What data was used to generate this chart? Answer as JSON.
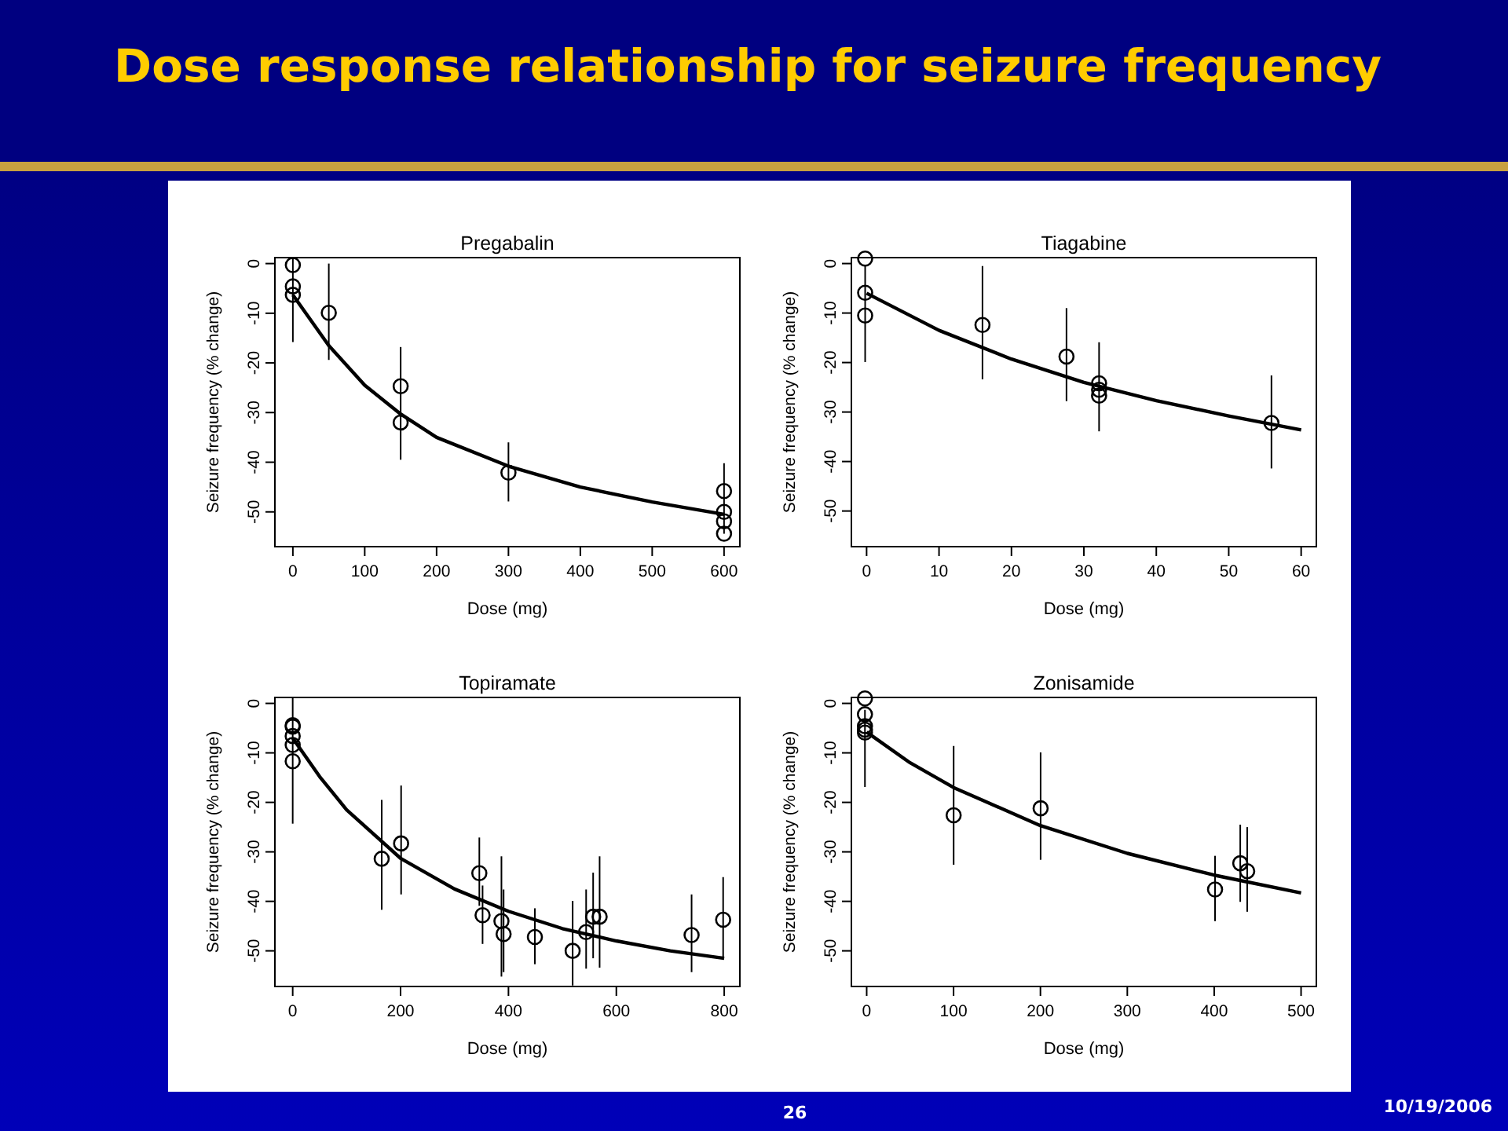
{
  "chart_data": [
    {
      "type": "other",
      "title": "Dose response relationship for seizure frequency",
      "annotations": [
        "26",
        "10/19/2006"
      ]
    },
    {
      "type": "scatter",
      "title": "Pregabalin",
      "xlabel": "Dose (mg)",
      "ylabel": "Seizure frequency (% change)",
      "xlim": [
        -25,
        622
      ],
      "ylim": [
        -57,
        1.2
      ],
      "xticks": [
        0,
        100,
        200,
        300,
        400,
        500,
        600
      ],
      "yticks": [
        0,
        -10,
        -20,
        -30,
        -40,
        -50
      ],
      "series": [
        {
          "type": "scatter",
          "marker": "circle",
          "color": "#000000",
          "x": [
            0,
            0,
            0,
            50,
            150,
            150,
            300,
            600,
            600,
            600,
            600
          ],
          "values": [
            -0.3,
            -4.6,
            -6.3,
            -9.9,
            -24.7,
            -32,
            -42.1,
            -45.8,
            -50,
            -51.9,
            -54.4
          ],
          "errors": [
            null,
            null,
            [
              -15.8,
              1.2
            ],
            [
              -19.4,
              0
            ],
            [
              -39.5,
              -16.8
            ],
            null,
            [
              -47.9,
              -36
            ],
            [
              -54.4,
              -40.2
            ],
            null,
            null,
            null
          ]
        },
        {
          "type": "line",
          "marker": "none",
          "color": "#000000",
          "x": [
            0,
            50,
            100,
            150,
            200,
            300,
            400,
            500,
            600
          ],
          "values": [
            -6.3,
            -16.5,
            -24.5,
            -30.3,
            -35,
            -40.8,
            -45,
            -48,
            -50.5
          ]
        }
      ]
    },
    {
      "type": "scatter",
      "title": "Tiagabine",
      "xlabel": "Dose (mg)",
      "ylabel": "Seizure frequency (% change)",
      "xlim": [
        -2.1,
        62.1
      ],
      "ylim": [
        -57.2,
        1.2
      ],
      "xticks": [
        0,
        10,
        20,
        30,
        40,
        50,
        60
      ],
      "yticks": [
        0,
        -10,
        -20,
        -30,
        -40,
        -50
      ],
      "series": [
        {
          "type": "scatter",
          "marker": "circle",
          "color": "#000000",
          "x": [
            -0.2,
            -0.2,
            -0.2,
            16,
            27.6,
            32.1,
            32.1,
            32.1,
            55.9
          ],
          "values": [
            1,
            -5.9,
            -10.5,
            -12.4,
            -18.8,
            -24.2,
            -25.5,
            -26.7,
            -32.2
          ],
          "errors": [
            null,
            null,
            [
              -19.9,
              -0.3
            ],
            [
              -23.4,
              -0.5
            ],
            [
              -27.8,
              -9
            ],
            null,
            [
              -33.9,
              -15.9
            ],
            null,
            [
              -41.4,
              -22.6
            ]
          ]
        },
        {
          "type": "line",
          "marker": "none",
          "color": "#000000",
          "x": [
            0,
            10,
            20,
            30,
            40,
            50,
            60
          ],
          "values": [
            -6,
            -13.5,
            -19.3,
            -24,
            -27.7,
            -30.8,
            -33.6
          ]
        }
      ]
    },
    {
      "type": "scatter",
      "title": "Topiramate",
      "xlabel": "Dose (mg)",
      "ylabel": "Seizure frequency (% change)",
      "xlim": [
        -33,
        829
      ],
      "ylim": [
        -57.2,
        1.2
      ],
      "xticks": [
        0,
        200,
        400,
        600,
        800
      ],
      "yticks": [
        0,
        -10,
        -20,
        -30,
        -40,
        -50
      ],
      "series": [
        {
          "type": "scatter",
          "marker": "circle",
          "color": "#000000",
          "x": [
            0,
            0,
            0,
            0,
            0,
            165,
            201,
            346,
            352,
            387,
            391,
            449,
            519,
            544,
            557,
            569,
            739.5,
            798
          ],
          "values": [
            -4.4,
            -4.7,
            -6.6,
            -8.4,
            -11.7,
            -31.4,
            -28.3,
            -34.3,
            -42.8,
            -44,
            -46.6,
            -47.2,
            -50,
            -46.2,
            -43.1,
            -43.1,
            -46.8,
            -43.7
          ],
          "errors": [
            null,
            null,
            null,
            null,
            [
              -24.3,
              1.2
            ],
            [
              -41.7,
              -19.5
            ],
            [
              -38.6,
              -16.6
            ],
            [
              -40.9,
              -27.1
            ],
            [
              -48.6,
              -36.8
            ],
            [
              -55.2,
              -30.9
            ],
            [
              -54.3,
              -37.6
            ],
            [
              -52.7,
              -41.4
            ],
            [
              -57,
              -39.9
            ],
            [
              -53.6,
              -37.6
            ],
            [
              -51.5,
              -34.2
            ],
            [
              -53.4,
              -30.9
            ],
            [
              -54.3,
              -38.6
            ],
            [
              -51.3,
              -35.1
            ]
          ]
        },
        {
          "type": "line",
          "marker": "none",
          "color": "#000000",
          "x": [
            0,
            50,
            100,
            200,
            300,
            400,
            500,
            600,
            700,
            800
          ],
          "values": [
            -7,
            -14.8,
            -21.5,
            -31.3,
            -37.5,
            -42,
            -45.5,
            -48,
            -50,
            -51.5
          ]
        }
      ]
    },
    {
      "type": "scatter",
      "title": "Zonisamide",
      "xlabel": "Dose (mg)",
      "ylabel": "Seizure frequency (% change)",
      "xlim": [
        -17.6,
        517.6
      ],
      "ylim": [
        -57.2,
        1.2
      ],
      "xticks": [
        0,
        100,
        200,
        300,
        400,
        500
      ],
      "yticks": [
        0,
        -10,
        -20,
        -30,
        -40,
        -50
      ],
      "series": [
        {
          "type": "scatter",
          "marker": "circle",
          "color": "#000000",
          "x": [
            -2,
            -2,
            -2,
            -2,
            -2,
            100.1,
            200.2,
            401,
            430,
            438
          ],
          "values": [
            1,
            -2.2,
            -4.6,
            -5.3,
            -5.9,
            -22.6,
            -21.2,
            -37.6,
            -32.3,
            -33.9
          ],
          "errors": [
            null,
            null,
            null,
            null,
            [
              -16.9,
              -1.3
            ],
            [
              -32.6,
              -8.6
            ],
            [
              -31.6,
              -9.9
            ],
            [
              -44,
              -30.8
            ],
            [
              -40.1,
              -24.5
            ],
            [
              -42.1,
              -25
            ]
          ]
        },
        {
          "type": "line",
          "marker": "none",
          "color": "#000000",
          "x": [
            0,
            50,
            100,
            200,
            300,
            400,
            500
          ],
          "values": [
            -5.8,
            -12,
            -17,
            -24.7,
            -30.3,
            -34.7,
            -38.3
          ]
        }
      ]
    }
  ]
}
